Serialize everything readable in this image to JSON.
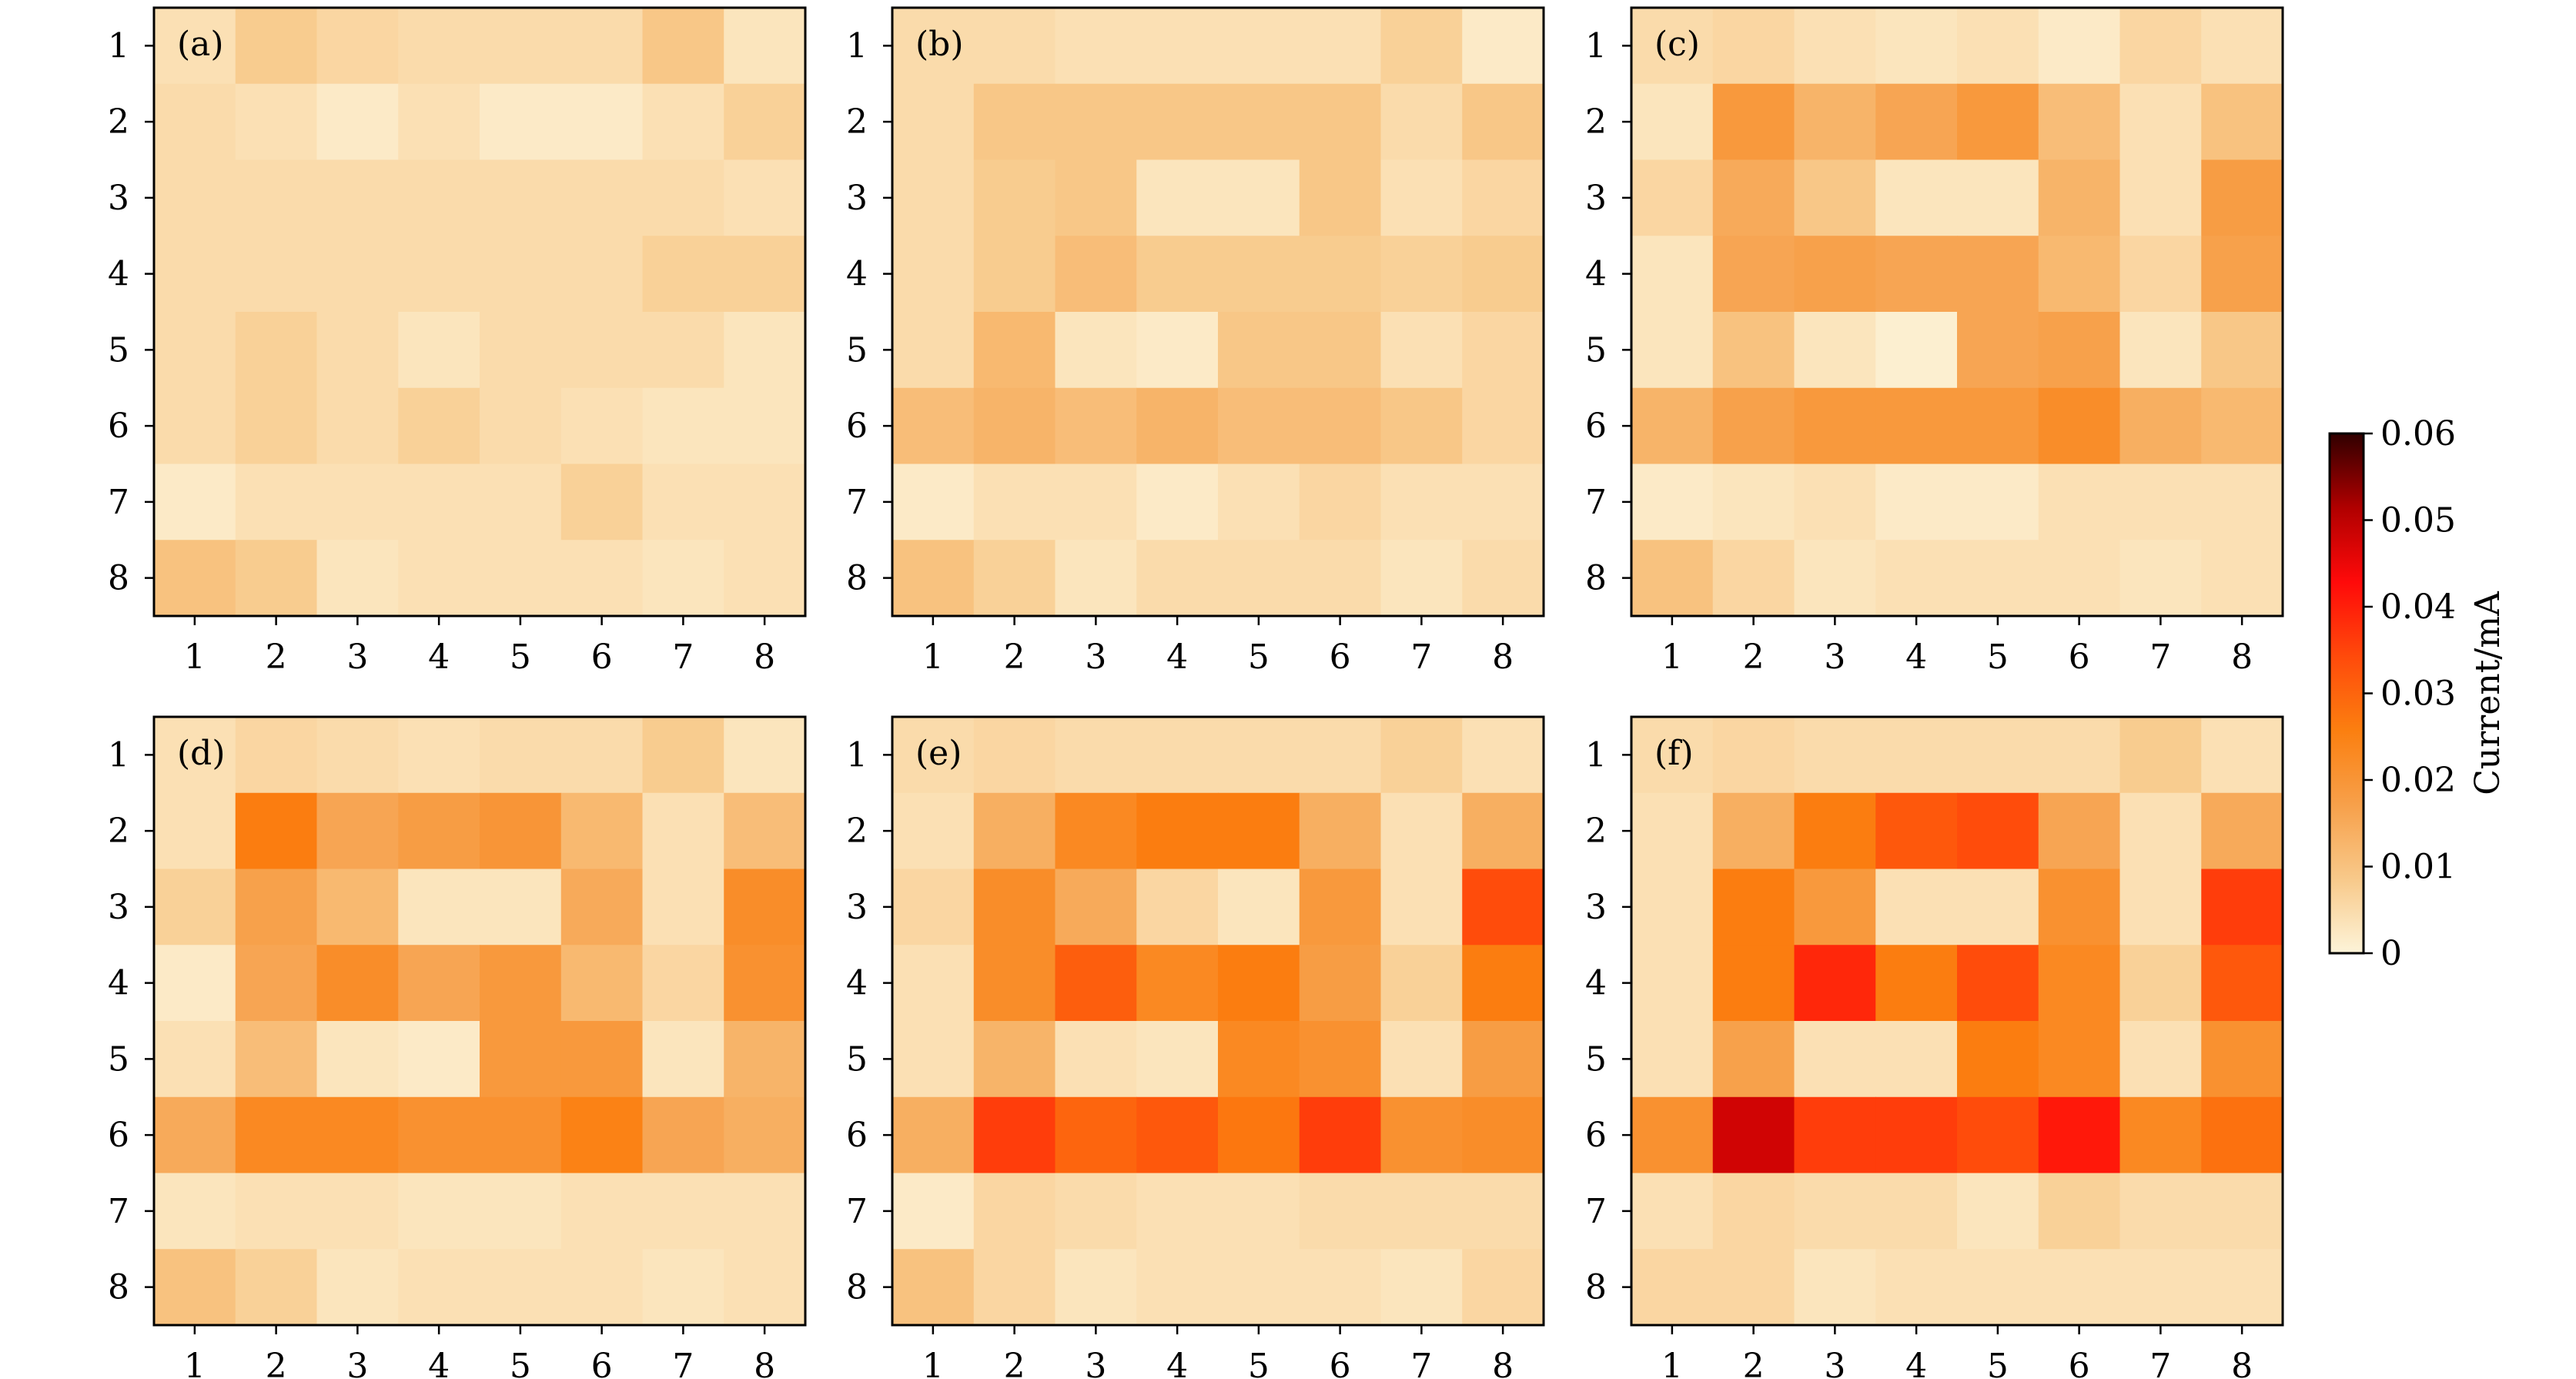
{
  "figure": {
    "colorbar": {
      "label": "Current/mA",
      "ticks": [
        "0",
        "0.01",
        "0.02",
        "0.03",
        "0.04",
        "0.05",
        "0.06"
      ],
      "tick_values": [
        0,
        0.01,
        0.02,
        0.03,
        0.04,
        0.05,
        0.06
      ],
      "min": 0,
      "max": 0.06,
      "colormap_stops": [
        "#fdf4d9",
        "#f8c98a",
        "#f7a04a",
        "#fb7f10",
        "#ff4a0b",
        "#ff0a0a",
        "#b00000",
        "#300000"
      ]
    }
  },
  "chart_data": [
    {
      "type": "heatmap",
      "panel": "(a)",
      "x_ticks": [
        "1",
        "2",
        "3",
        "4",
        "5",
        "6",
        "7",
        "8"
      ],
      "y_ticks": [
        "1",
        "2",
        "3",
        "4",
        "5",
        "6",
        "7",
        "8"
      ],
      "values": [
        [
          0.004,
          0.008,
          0.006,
          0.005,
          0.005,
          0.005,
          0.009,
          0.003
        ],
        [
          0.005,
          0.004,
          0.002,
          0.004,
          0.002,
          0.002,
          0.004,
          0.007
        ],
        [
          0.005,
          0.005,
          0.005,
          0.005,
          0.005,
          0.005,
          0.005,
          0.004
        ],
        [
          0.005,
          0.005,
          0.005,
          0.005,
          0.005,
          0.005,
          0.007,
          0.007
        ],
        [
          0.005,
          0.007,
          0.005,
          0.003,
          0.005,
          0.005,
          0.005,
          0.003
        ],
        [
          0.005,
          0.007,
          0.005,
          0.007,
          0.005,
          0.004,
          0.003,
          0.003
        ],
        [
          0.002,
          0.004,
          0.004,
          0.004,
          0.004,
          0.007,
          0.004,
          0.004
        ],
        [
          0.01,
          0.008,
          0.003,
          0.004,
          0.004,
          0.004,
          0.003,
          0.004
        ]
      ]
    },
    {
      "type": "heatmap",
      "panel": "(b)",
      "x_ticks": [
        "1",
        "2",
        "3",
        "4",
        "5",
        "6",
        "7",
        "8"
      ],
      "y_ticks": [
        "1",
        "2",
        "3",
        "4",
        "5",
        "6",
        "7",
        "8"
      ],
      "values": [
        [
          0.005,
          0.005,
          0.004,
          0.004,
          0.004,
          0.004,
          0.007,
          0.002
        ],
        [
          0.005,
          0.009,
          0.009,
          0.009,
          0.009,
          0.009,
          0.005,
          0.009
        ],
        [
          0.005,
          0.008,
          0.009,
          0.003,
          0.003,
          0.009,
          0.004,
          0.006
        ],
        [
          0.005,
          0.008,
          0.011,
          0.008,
          0.008,
          0.008,
          0.007,
          0.008
        ],
        [
          0.005,
          0.012,
          0.003,
          0.002,
          0.009,
          0.009,
          0.004,
          0.006
        ],
        [
          0.011,
          0.013,
          0.011,
          0.013,
          0.011,
          0.011,
          0.009,
          0.006
        ],
        [
          0.002,
          0.004,
          0.004,
          0.002,
          0.004,
          0.006,
          0.004,
          0.004
        ],
        [
          0.01,
          0.007,
          0.003,
          0.005,
          0.005,
          0.005,
          0.003,
          0.005
        ]
      ]
    },
    {
      "type": "heatmap",
      "panel": "(c)",
      "x_ticks": [
        "1",
        "2",
        "3",
        "4",
        "5",
        "6",
        "7",
        "8"
      ],
      "y_ticks": [
        "1",
        "2",
        "3",
        "4",
        "5",
        "6",
        "7",
        "8"
      ],
      "values": [
        [
          0.005,
          0.006,
          0.004,
          0.003,
          0.004,
          0.002,
          0.006,
          0.004
        ],
        [
          0.003,
          0.019,
          0.013,
          0.016,
          0.019,
          0.011,
          0.004,
          0.01
        ],
        [
          0.006,
          0.015,
          0.009,
          0.003,
          0.003,
          0.013,
          0.004,
          0.018
        ],
        [
          0.003,
          0.016,
          0.017,
          0.016,
          0.016,
          0.012,
          0.006,
          0.017
        ],
        [
          0.003,
          0.01,
          0.003,
          0.001,
          0.016,
          0.017,
          0.003,
          0.009
        ],
        [
          0.013,
          0.017,
          0.019,
          0.019,
          0.019,
          0.022,
          0.014,
          0.012
        ],
        [
          0.002,
          0.003,
          0.004,
          0.002,
          0.002,
          0.004,
          0.004,
          0.004
        ],
        [
          0.01,
          0.006,
          0.003,
          0.004,
          0.004,
          0.004,
          0.003,
          0.004
        ]
      ]
    },
    {
      "type": "heatmap",
      "panel": "(d)",
      "x_ticks": [
        "1",
        "2",
        "3",
        "4",
        "5",
        "6",
        "7",
        "8"
      ],
      "y_ticks": [
        "1",
        "2",
        "3",
        "4",
        "5",
        "6",
        "7",
        "8"
      ],
      "values": [
        [
          0.004,
          0.006,
          0.005,
          0.004,
          0.005,
          0.005,
          0.008,
          0.003
        ],
        [
          0.004,
          0.026,
          0.016,
          0.018,
          0.02,
          0.012,
          0.004,
          0.011
        ],
        [
          0.007,
          0.017,
          0.012,
          0.003,
          0.003,
          0.015,
          0.004,
          0.022
        ],
        [
          0.002,
          0.016,
          0.022,
          0.016,
          0.019,
          0.012,
          0.006,
          0.021
        ],
        [
          0.004,
          0.011,
          0.003,
          0.002,
          0.019,
          0.019,
          0.003,
          0.013
        ],
        [
          0.015,
          0.023,
          0.023,
          0.021,
          0.021,
          0.025,
          0.016,
          0.014
        ],
        [
          0.003,
          0.004,
          0.004,
          0.003,
          0.003,
          0.004,
          0.004,
          0.004
        ],
        [
          0.01,
          0.007,
          0.003,
          0.004,
          0.004,
          0.004,
          0.003,
          0.004
        ]
      ]
    },
    {
      "type": "heatmap",
      "panel": "(e)",
      "x_ticks": [
        "1",
        "2",
        "3",
        "4",
        "5",
        "6",
        "7",
        "8"
      ],
      "y_ticks": [
        "1",
        "2",
        "3",
        "4",
        "5",
        "6",
        "7",
        "8"
      ],
      "values": [
        [
          0.005,
          0.006,
          0.005,
          0.005,
          0.005,
          0.005,
          0.007,
          0.004
        ],
        [
          0.004,
          0.014,
          0.023,
          0.026,
          0.026,
          0.014,
          0.004,
          0.014
        ],
        [
          0.006,
          0.022,
          0.015,
          0.006,
          0.003,
          0.019,
          0.004,
          0.034
        ],
        [
          0.004,
          0.022,
          0.031,
          0.023,
          0.026,
          0.018,
          0.007,
          0.026
        ],
        [
          0.004,
          0.013,
          0.004,
          0.003,
          0.023,
          0.021,
          0.004,
          0.018
        ],
        [
          0.014,
          0.036,
          0.03,
          0.032,
          0.027,
          0.036,
          0.021,
          0.022
        ],
        [
          0.002,
          0.006,
          0.005,
          0.004,
          0.004,
          0.005,
          0.005,
          0.005
        ],
        [
          0.01,
          0.006,
          0.003,
          0.004,
          0.004,
          0.004,
          0.003,
          0.006
        ]
      ]
    },
    {
      "type": "heatmap",
      "panel": "(f)",
      "x_ticks": [
        "1",
        "2",
        "3",
        "4",
        "5",
        "6",
        "7",
        "8"
      ],
      "y_ticks": [
        "1",
        "2",
        "3",
        "4",
        "5",
        "6",
        "7",
        "8"
      ],
      "values": [
        [
          0.005,
          0.006,
          0.005,
          0.005,
          0.005,
          0.005,
          0.008,
          0.004
        ],
        [
          0.004,
          0.014,
          0.026,
          0.032,
          0.034,
          0.016,
          0.004,
          0.015
        ],
        [
          0.004,
          0.026,
          0.019,
          0.004,
          0.004,
          0.021,
          0.004,
          0.036
        ],
        [
          0.004,
          0.026,
          0.039,
          0.026,
          0.034,
          0.023,
          0.007,
          0.032
        ],
        [
          0.004,
          0.017,
          0.004,
          0.004,
          0.026,
          0.023,
          0.004,
          0.021
        ],
        [
          0.021,
          0.048,
          0.036,
          0.036,
          0.034,
          0.041,
          0.023,
          0.028
        ],
        [
          0.004,
          0.006,
          0.005,
          0.005,
          0.003,
          0.007,
          0.005,
          0.005
        ],
        [
          0.006,
          0.006,
          0.003,
          0.004,
          0.004,
          0.004,
          0.004,
          0.004
        ]
      ]
    }
  ]
}
